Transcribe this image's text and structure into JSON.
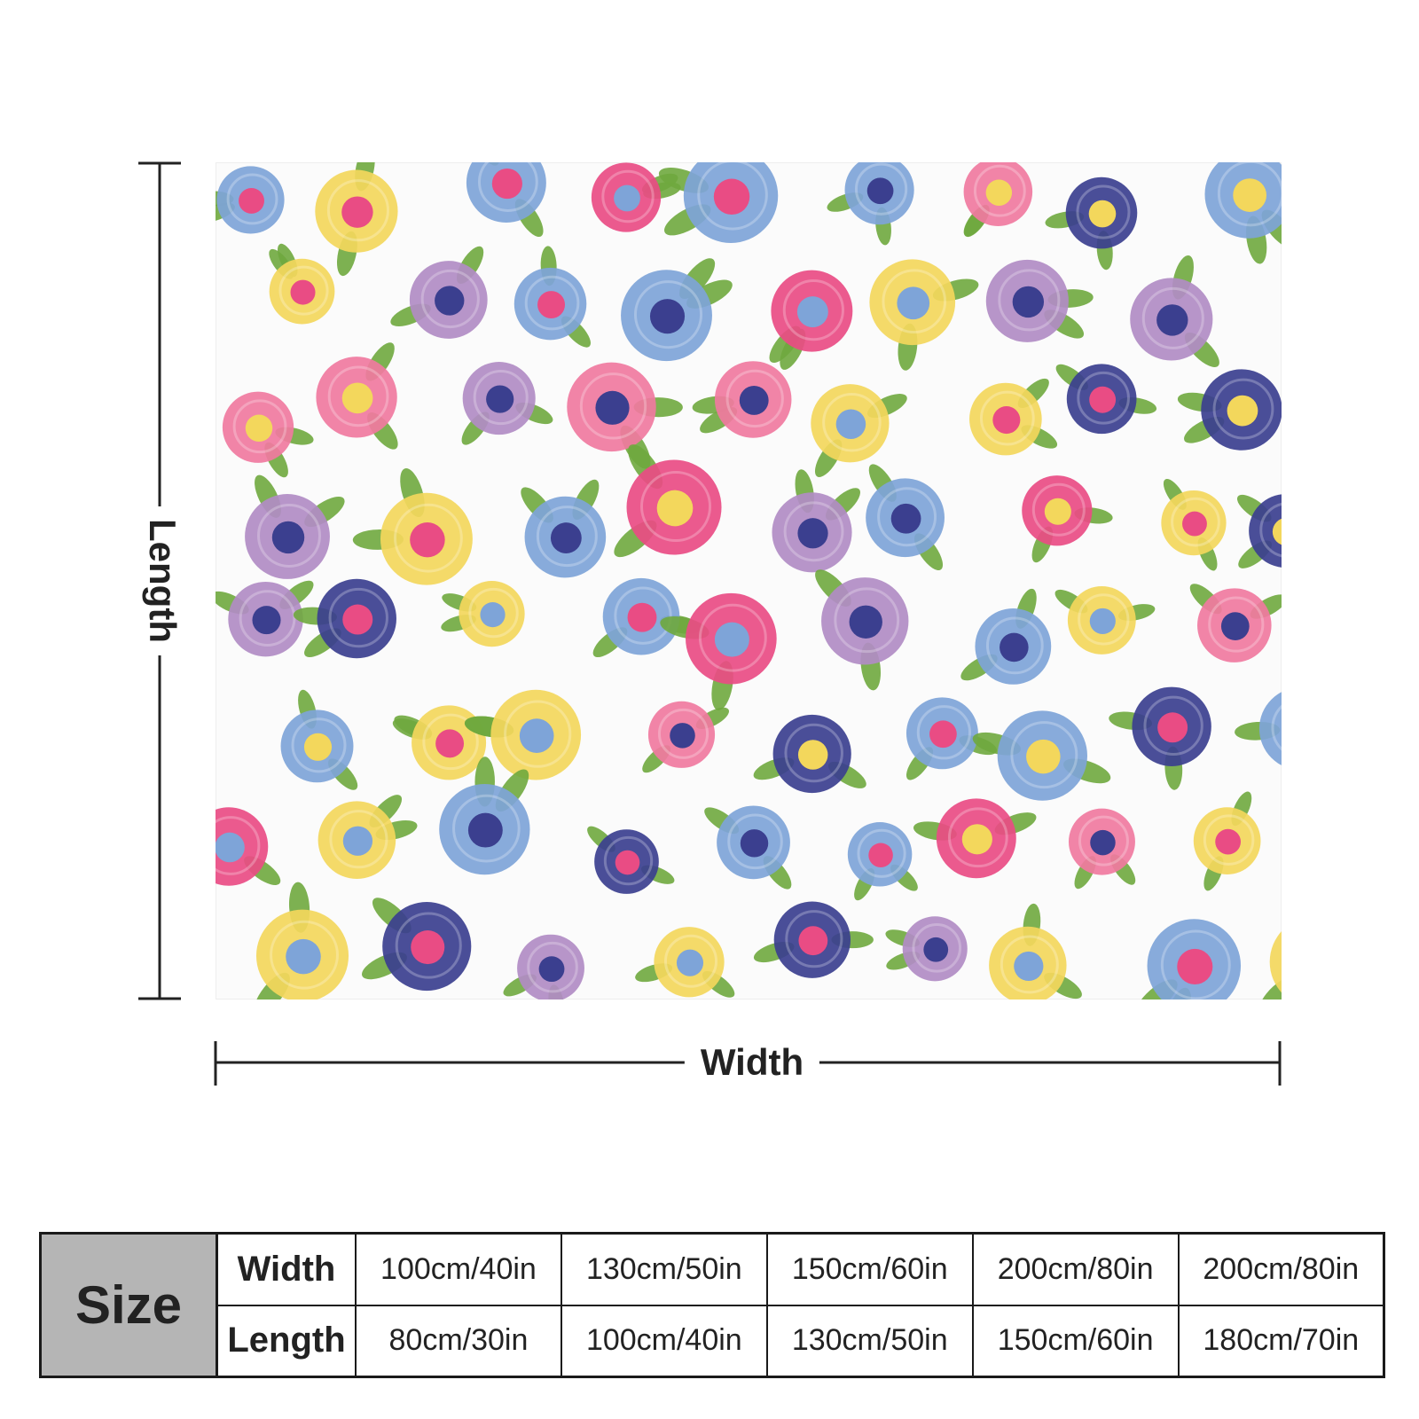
{
  "dimensions": {
    "length_label": "Length",
    "width_label": "Width"
  },
  "size_table": {
    "header": "Size",
    "rows": [
      {
        "label": "Width",
        "values": [
          "100cm/40in",
          "130cm/50in",
          "150cm/60in",
          "200cm/80in",
          "200cm/80in"
        ]
      },
      {
        "label": "Length",
        "values": [
          "80cm/30in",
          "100cm/40in",
          "130cm/50in",
          "150cm/60in",
          "180cm/70in"
        ]
      }
    ]
  },
  "colors": {
    "pink": "#e94c84",
    "light_pink": "#f07aa0",
    "blue": "#7ea4d8",
    "navy": "#3b3f8f",
    "yellow": "#f3d75c",
    "lavender": "#b18cc4",
    "leaf": "#6fa83e",
    "table_header_bg": "#b5b5b5"
  }
}
